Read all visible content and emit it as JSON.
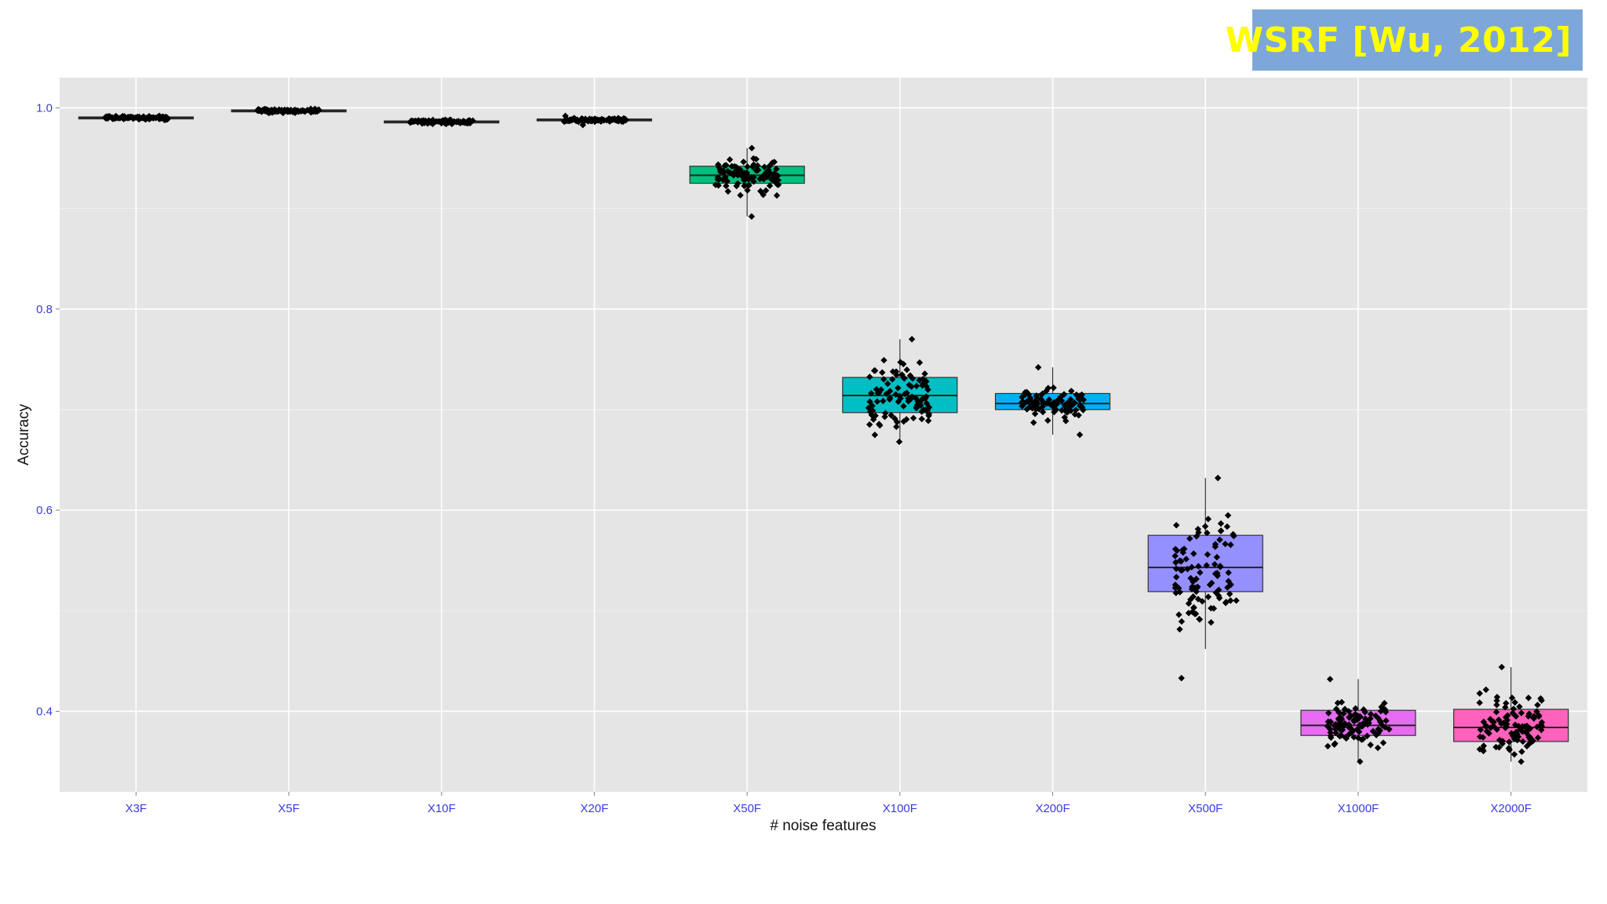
{
  "badge": {
    "text": "WSRF [Wu, 2012]",
    "background": "#7da7d8",
    "color": "#ffff00"
  },
  "chart_data": {
    "type": "boxplot",
    "xlabel": "# noise features",
    "ylabel": "Accuracy",
    "ylim": [
      0.32,
      1.03
    ],
    "yticks": [
      0.4,
      0.6,
      0.8,
      1.0
    ],
    "ytick_labels": [
      "0.4",
      "0.6",
      "0.8",
      "1.0"
    ],
    "grid": true,
    "panel_background": "#e5e5e5",
    "categories": [
      "X3F",
      "X5F",
      "X10F",
      "X20F",
      "X50F",
      "X100F",
      "X200F",
      "X500F",
      "X1000F",
      "X2000F"
    ],
    "series": [
      {
        "category": "X3F",
        "q1": 0.989,
        "median": 0.99,
        "q3": 0.991,
        "whisker_low": 0.988,
        "whisker_high": 0.992,
        "fill": "#f8766d",
        "points_min": 0.988,
        "points_max": 0.992
      },
      {
        "category": "X5F",
        "q1": 0.996,
        "median": 0.997,
        "q3": 0.998,
        "whisker_low": 0.995,
        "whisker_high": 0.999,
        "fill": "#d89000",
        "points_min": 0.995,
        "points_max": 0.999
      },
      {
        "category": "X10F",
        "q1": 0.985,
        "median": 0.986,
        "q3": 0.987,
        "whisker_low": 0.984,
        "whisker_high": 0.988,
        "fill": "#a3a500",
        "points_min": 0.984,
        "points_max": 0.988
      },
      {
        "category": "X20F",
        "q1": 0.987,
        "median": 0.988,
        "q3": 0.989,
        "whisker_low": 0.983,
        "whisker_high": 0.992,
        "fill": "#39b600",
        "points_min": 0.983,
        "points_max": 0.992
      },
      {
        "category": "X50F",
        "q1": 0.925,
        "median": 0.933,
        "q3": 0.942,
        "whisker_low": 0.892,
        "whisker_high": 0.96,
        "fill": "#00bf7d",
        "points_min": 0.892,
        "points_max": 0.96
      },
      {
        "category": "X100F",
        "q1": 0.697,
        "median": 0.714,
        "q3": 0.732,
        "whisker_low": 0.668,
        "whisker_high": 0.77,
        "fill": "#00bfc4",
        "points_min": 0.668,
        "points_max": 0.77
      },
      {
        "category": "X200F",
        "q1": 0.7,
        "median": 0.706,
        "q3": 0.716,
        "whisker_low": 0.675,
        "whisker_high": 0.742,
        "fill": "#00b0f6",
        "points_min": 0.675,
        "points_max": 0.742
      },
      {
        "category": "X500F",
        "q1": 0.519,
        "median": 0.543,
        "q3": 0.575,
        "whisker_low": 0.462,
        "whisker_high": 0.632,
        "fill": "#9590ff",
        "points_min": 0.433,
        "points_max": 0.632
      },
      {
        "category": "X1000F",
        "q1": 0.376,
        "median": 0.386,
        "q3": 0.401,
        "whisker_low": 0.35,
        "whisker_high": 0.432,
        "fill": "#e76bf3",
        "points_min": 0.35,
        "points_max": 0.432
      },
      {
        "category": "X2000F",
        "q1": 0.37,
        "median": 0.384,
        "q3": 0.402,
        "whisker_low": 0.35,
        "whisker_high": 0.444,
        "fill": "#ff62bc",
        "points_min": 0.35,
        "points_max": 0.444
      }
    ]
  }
}
